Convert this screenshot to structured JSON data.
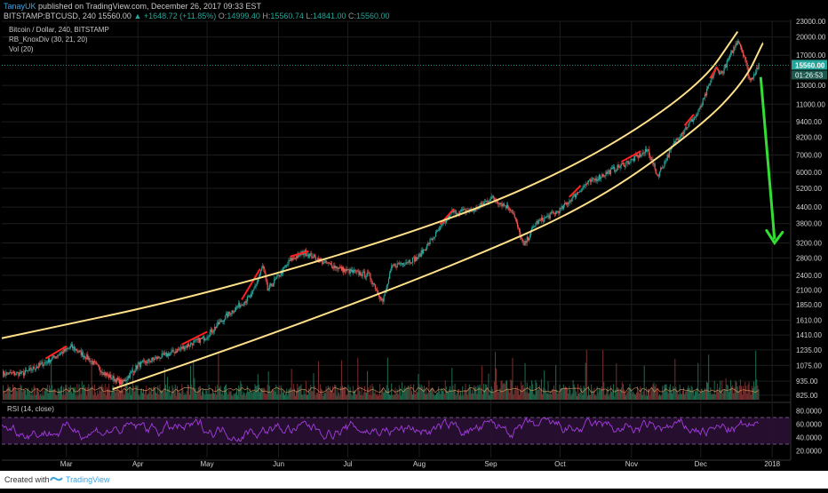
{
  "header": {
    "author": "TanayUK",
    "published_text": "published on TradingView.com, December 26, 2017 09:33 EST",
    "symbol": "BITSTAMP:BTCUSD, 240",
    "last": "15560.00",
    "change_arrow": "▲",
    "change": "+1648.72 (+11.85%)",
    "o_label": "O:",
    "o_value": "14999.40",
    "h_label": "H:",
    "h_value": "15560.74",
    "l_label": "L:",
    "l_value": "14841.00",
    "c_label": "C:",
    "c_value": "15560.00"
  },
  "legend": {
    "title": "Bitcoin / Dollar, 240, BITSTAMP",
    "indicator": "RB_KnoxDiv (30, 21, 20)",
    "volume": "Vol (20)"
  },
  "footer": {
    "created": "Created with",
    "brand": "TradingView"
  },
  "colors": {
    "background": "#000000",
    "channel": "#ffe08a",
    "arrow": "#33dd33",
    "up_candle": "#26a69a",
    "down_candle": "#ef5350",
    "divergence": "#ff2020",
    "rsi_line": "#a23de0",
    "price_tag": "#26a69a",
    "grid": "#1c1c1c"
  },
  "chart_data": {
    "type": "candlestick",
    "title": "Bitcoin / Dollar, 240, BITSTAMP",
    "y_scale": "log",
    "ylim": [
      780,
      23000
    ],
    "price_ticks": [
      "23000.00",
      "20000.00",
      "17000.00",
      "15560.00",
      "13000.00",
      "11000.00",
      "9400.00",
      "8200.00",
      "7000.00",
      "6000.00",
      "5200.00",
      "4400.00",
      "3800.00",
      "3200.00",
      "2800.00",
      "2400.00",
      "2100.00",
      "1850.00",
      "1610.00",
      "1410.00",
      "1235.00",
      "1075.00",
      "935.00",
      "825.00"
    ],
    "current_price": "15560.00",
    "countdown": "01:26:53",
    "x_labels": [
      "Mar",
      "Apr",
      "May",
      "Jun",
      "Jul",
      "Aug",
      "Sep",
      "Oct",
      "Nov",
      "Dec",
      "2018"
    ],
    "price_series": [
      [
        "2017-02-01",
        1000
      ],
      [
        "2017-02-10",
        1000
      ],
      [
        "2017-02-20",
        1110
      ],
      [
        "2017-03-03",
        1270
      ],
      [
        "2017-03-10",
        1150
      ],
      [
        "2017-03-18",
        990
      ],
      [
        "2017-03-25",
        920
      ],
      [
        "2017-04-01",
        1080
      ],
      [
        "2017-04-15",
        1200
      ],
      [
        "2017-04-30",
        1380
      ],
      [
        "2017-05-10",
        1700
      ],
      [
        "2017-05-20",
        2000
      ],
      [
        "2017-05-25",
        2600
      ],
      [
        "2017-05-27",
        2100
      ],
      [
        "2017-06-06",
        2750
      ],
      [
        "2017-06-12",
        2950
      ],
      [
        "2017-06-20",
        2700
      ],
      [
        "2017-06-30",
        2500
      ],
      [
        "2017-07-10",
        2400
      ],
      [
        "2017-07-16",
        1900
      ],
      [
        "2017-07-20",
        2600
      ],
      [
        "2017-07-31",
        2800
      ],
      [
        "2017-08-05",
        3200
      ],
      [
        "2017-08-15",
        4200
      ],
      [
        "2017-08-25",
        4300
      ],
      [
        "2017-09-01",
        4800
      ],
      [
        "2017-09-10",
        4300
      ],
      [
        "2017-09-15",
        3100
      ],
      [
        "2017-09-20",
        3800
      ],
      [
        "2017-10-01",
        4300
      ],
      [
        "2017-10-12",
        5400
      ],
      [
        "2017-10-20",
        5900
      ],
      [
        "2017-11-01",
        6700
      ],
      [
        "2017-11-08",
        7300
      ],
      [
        "2017-11-12",
        5800
      ],
      [
        "2017-11-20",
        8000
      ],
      [
        "2017-11-29",
        10000
      ],
      [
        "2017-12-01",
        10800
      ],
      [
        "2017-12-07",
        15000
      ],
      [
        "2017-12-10",
        14500
      ],
      [
        "2017-12-17",
        19600
      ],
      [
        "2017-12-20",
        16500
      ],
      [
        "2017-12-22",
        13500
      ],
      [
        "2017-12-24",
        14500
      ],
      [
        "2017-12-26",
        15560
      ]
    ],
    "channel_upper": [
      [
        "2017-02-01",
        1370
      ],
      [
        "2017-05-01",
        2020
      ],
      [
        "2017-08-15",
        3900
      ],
      [
        "2017-10-15",
        6800
      ],
      [
        "2017-12-01",
        13000
      ],
      [
        "2017-12-17",
        21000
      ]
    ],
    "channel_lower": [
      [
        "2017-03-21",
        870
      ],
      [
        "2017-06-01",
        1450
      ],
      [
        "2017-08-15",
        2600
      ],
      [
        "2017-10-15",
        4500
      ],
      [
        "2017-12-01",
        9000
      ],
      [
        "2017-12-20",
        13500
      ],
      [
        "2017-12-28",
        19000
      ]
    ],
    "arrow": {
      "from": [
        "2017-12-27",
        14000
      ],
      "to": [
        "2018-01-02",
        3200
      ]
    },
    "rsi": {
      "label": "RSI (14, close)",
      "ylim": [
        10,
        90
      ],
      "ticks": [
        "80.0000",
        "60.0000",
        "40.0000",
        "20.0000"
      ],
      "bands": [
        30,
        70
      ]
    }
  }
}
